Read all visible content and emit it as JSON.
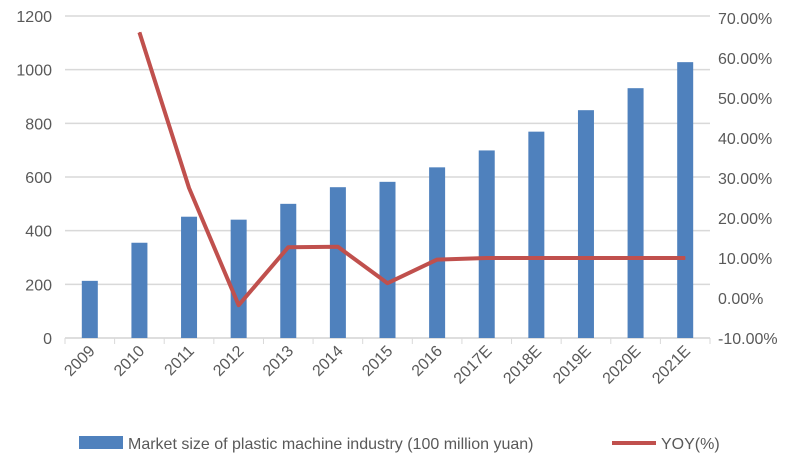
{
  "chart_data": {
    "type": "bar+line",
    "categories": [
      "2009",
      "2010",
      "2011",
      "2012",
      "2013",
      "2014",
      "2015",
      "2016",
      "2017E",
      "2018E",
      "2019E",
      "2020E",
      "2021E"
    ],
    "series": [
      {
        "name": "Market size of plastic machine industry (100 million yuan)",
        "type": "bar",
        "axis": "left",
        "color": "#4f81bd",
        "values": [
          213,
          355,
          452,
          441,
          500,
          562,
          582,
          636,
          699,
          769,
          849,
          931,
          1028
        ]
      },
      {
        "name": "YOY(%)",
        "type": "line",
        "axis": "right",
        "color": "#c0504d",
        "values": [
          null,
          66.4,
          27.5,
          -1.8,
          12.7,
          12.8,
          3.7,
          9.6,
          10.0,
          10.0,
          10.0,
          10.0,
          10.0
        ]
      }
    ],
    "left_axis": {
      "min": 0,
      "max": 1200,
      "step": 200,
      "ticks": [
        "0",
        "200",
        "400",
        "600",
        "800",
        "1000",
        "1200"
      ]
    },
    "right_axis": {
      "min": -10,
      "max": 70,
      "step": 10,
      "ticks": [
        "-10.00%",
        "0.00%",
        "10.00%",
        "20.00%",
        "30.00%",
        "40.00%",
        "50.00%",
        "60.00%",
        "70.00%"
      ]
    },
    "grid": true,
    "legend_position": "bottom"
  }
}
